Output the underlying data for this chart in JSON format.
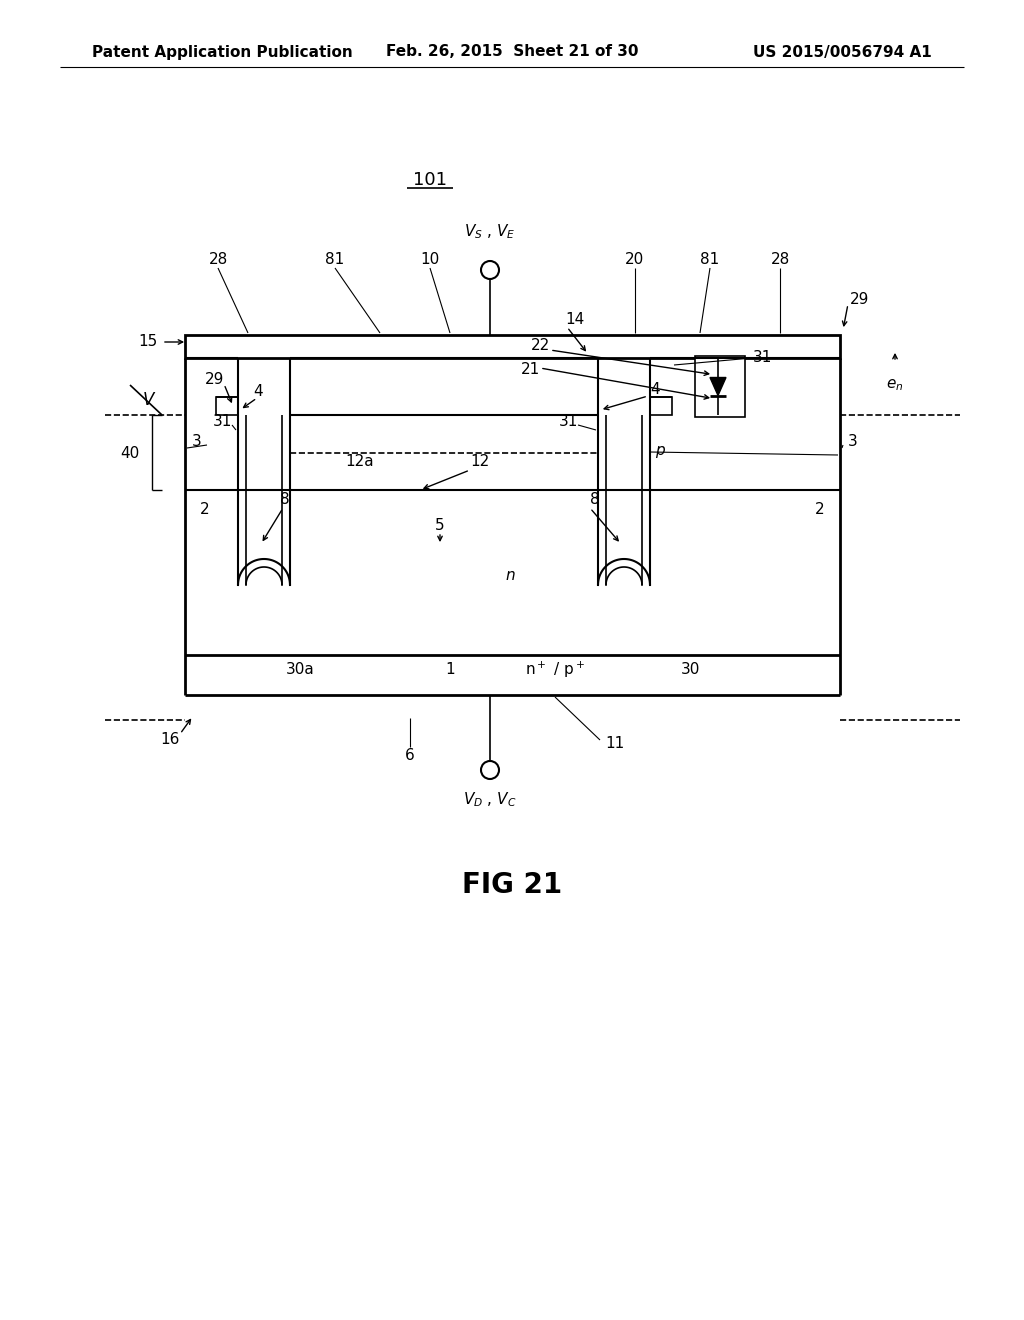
{
  "header_left": "Patent Application Publication",
  "header_mid": "Feb. 26, 2015  Sheet 21 of 30",
  "header_right": "US 2015/0056794 A1",
  "fig_label": "FIG 21",
  "diagram_label": "101",
  "bg_color": "#ffffff",
  "line_color": "#000000",
  "header_fontsize": 11,
  "label_fontsize": 11,
  "fig_fontsize": 20
}
